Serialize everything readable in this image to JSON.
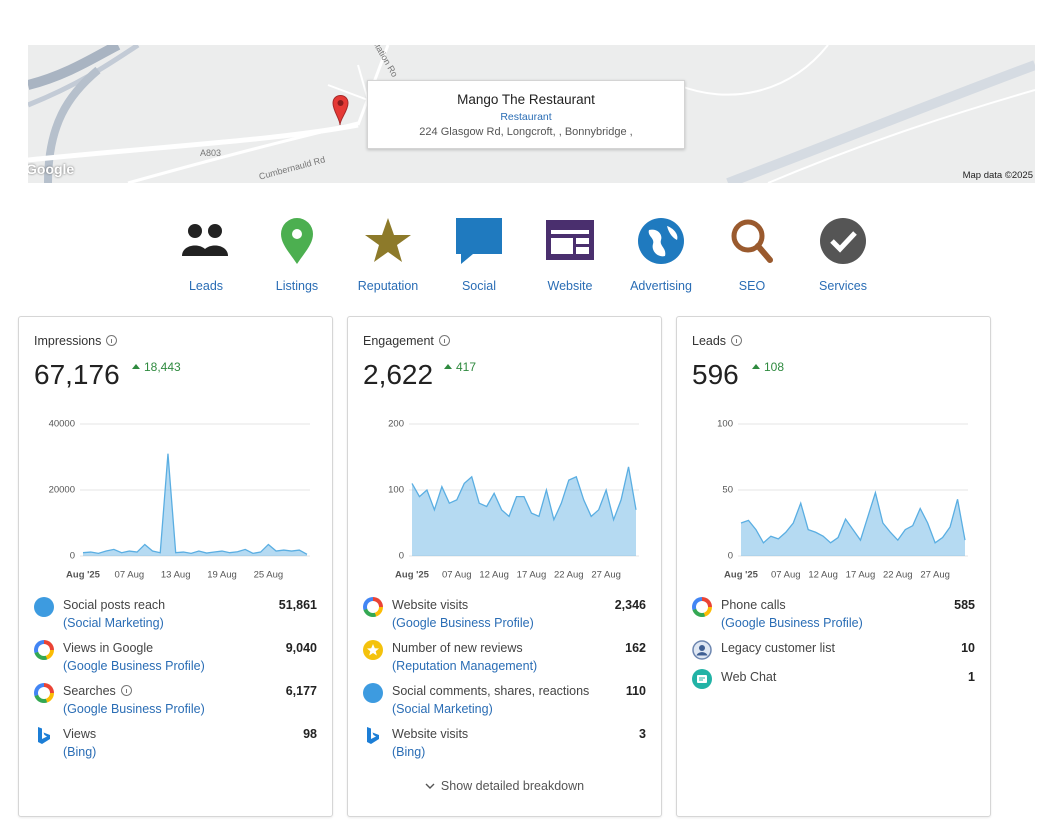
{
  "map": {
    "place_name": "Mango The Restaurant",
    "place_type": "Restaurant",
    "address": "224 Glasgow Rd, Longcroft, , Bonnybridge ,",
    "road_labels": [
      "A803",
      "Cumbernauld Rd",
      "Station Ro"
    ],
    "logo": "Google",
    "attribution": "Map data ©2025"
  },
  "nav": [
    "Leads",
    "Listings",
    "Reputation",
    "Social",
    "Website",
    "Advertising",
    "SEO",
    "Services"
  ],
  "cards": [
    {
      "title": "Impressions",
      "total": "67,176",
      "change": "18,443",
      "chart": {
        "type": "area",
        "color": "#5aaee2",
        "categories": [
          "Aug '25",
          null,
          null,
          null,
          null,
          null,
          "07 Aug",
          null,
          null,
          null,
          null,
          null,
          "13 Aug",
          null,
          null,
          null,
          null,
          null,
          "19 Aug",
          null,
          null,
          null,
          null,
          null,
          "25 Aug",
          null,
          null,
          null,
          null,
          null
        ],
        "values": [
          1000,
          1200,
          800,
          1500,
          2000,
          1000,
          1500,
          1200,
          3500,
          1500,
          1000,
          31000,
          1000,
          1200,
          800,
          1500,
          900,
          1200,
          1500,
          1000,
          1300,
          2000,
          800,
          1200,
          3500,
          1500,
          1800,
          1500,
          1800,
          500
        ],
        "ylim": [
          0,
          40000
        ],
        "yticks": [
          0,
          20000,
          40000
        ]
      },
      "rows": [
        {
          "label": "Social posts reach",
          "source": "(Social Marketing)",
          "value": "51,861"
        },
        {
          "label": "Views in Google",
          "source": "(Google Business Profile)",
          "value": "9,040"
        },
        {
          "label": "Searches",
          "source": "(Google Business Profile)",
          "value": "6,177"
        },
        {
          "label": "Views",
          "source": "(Bing)",
          "value": "98"
        }
      ]
    },
    {
      "title": "Engagement",
      "total": "2,622",
      "change": "417",
      "chart": {
        "type": "area",
        "color": "#5aaee2",
        "categories": [
          "Aug '25",
          null,
          null,
          null,
          null,
          null,
          "07 Aug",
          null,
          null,
          null,
          null,
          "12 Aug",
          null,
          null,
          null,
          null,
          "17 Aug",
          null,
          null,
          null,
          null,
          "22 Aug",
          null,
          null,
          null,
          null,
          "27 Aug",
          null,
          null,
          null,
          null
        ],
        "values": [
          110,
          90,
          100,
          70,
          105,
          80,
          85,
          110,
          120,
          80,
          75,
          95,
          70,
          60,
          90,
          90,
          65,
          60,
          100,
          55,
          80,
          115,
          120,
          85,
          60,
          70,
          100,
          55,
          85,
          135,
          70
        ],
        "ylim": [
          0,
          200
        ],
        "yticks": [
          0,
          100,
          200
        ]
      },
      "rows": [
        {
          "label": "Website visits",
          "source": "(Google Business Profile)",
          "value": "2,346"
        },
        {
          "label": "Number of new reviews",
          "source": "(Reputation Management)",
          "value": "162"
        },
        {
          "label": "Social comments, shares, reactions",
          "source": "(Social Marketing)",
          "value": "110"
        },
        {
          "label": "Website visits",
          "source": "(Bing)",
          "value": "3"
        }
      ],
      "breakdown": "Show detailed breakdown"
    },
    {
      "title": "Leads",
      "total": "596",
      "change": "108",
      "chart": {
        "type": "area",
        "color": "#5aaee2",
        "categories": [
          "Aug '25",
          null,
          null,
          null,
          null,
          null,
          "07 Aug",
          null,
          null,
          null,
          null,
          "12 Aug",
          null,
          null,
          null,
          null,
          "17 Aug",
          null,
          null,
          null,
          null,
          "22 Aug",
          null,
          null,
          null,
          null,
          "27 Aug",
          null,
          null,
          null,
          null
        ],
        "values": [
          25,
          27,
          20,
          10,
          15,
          13,
          18,
          25,
          40,
          20,
          18,
          15,
          10,
          14,
          28,
          20,
          12,
          30,
          48,
          25,
          18,
          12,
          20,
          23,
          36,
          25,
          10,
          14,
          22,
          43,
          12
        ],
        "ylim": [
          0,
          100
        ],
        "yticks": [
          0,
          50,
          100
        ]
      },
      "rows": [
        {
          "label": "Phone calls",
          "source": "(Google Business Profile)",
          "value": "585"
        },
        {
          "label": "Legacy customer list",
          "value": "10"
        },
        {
          "label": "Web Chat",
          "value": "1"
        }
      ]
    }
  ]
}
